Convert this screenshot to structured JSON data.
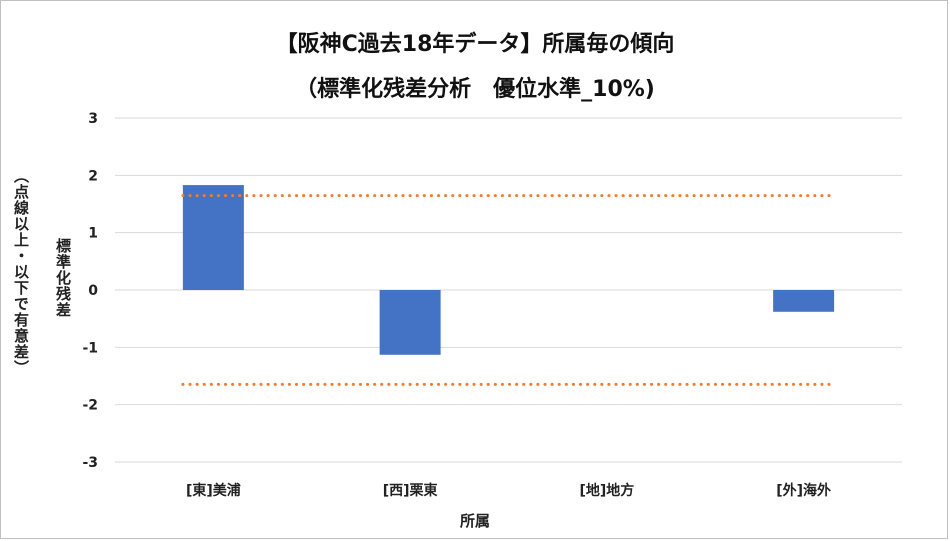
{
  "chart_data": {
    "type": "bar",
    "title": "【阪神C過去18年データ】所属毎の傾向",
    "subtitle": "（標準化残差分析　優位水準_10%)",
    "xlabel": "所属",
    "ylabel_line1": "標準化残差",
    "ylabel_line2": "（点線以上・以下で有意差）",
    "categories": [
      "[東]美浦",
      "[西]栗東",
      "[地]地方",
      "[外]海外"
    ],
    "values": [
      1.83,
      -1.13,
      0,
      -0.38
    ],
    "ylim": [
      -3,
      3
    ],
    "yticks": [
      3,
      2,
      1,
      0,
      -1,
      -2,
      -3
    ],
    "threshold_upper": 1.645,
    "threshold_lower": -1.645,
    "grid": true,
    "legend": "none",
    "bar_color": "#4472c4",
    "threshold_color": "#ed7d31",
    "grid_color": "#d9d9d9"
  }
}
